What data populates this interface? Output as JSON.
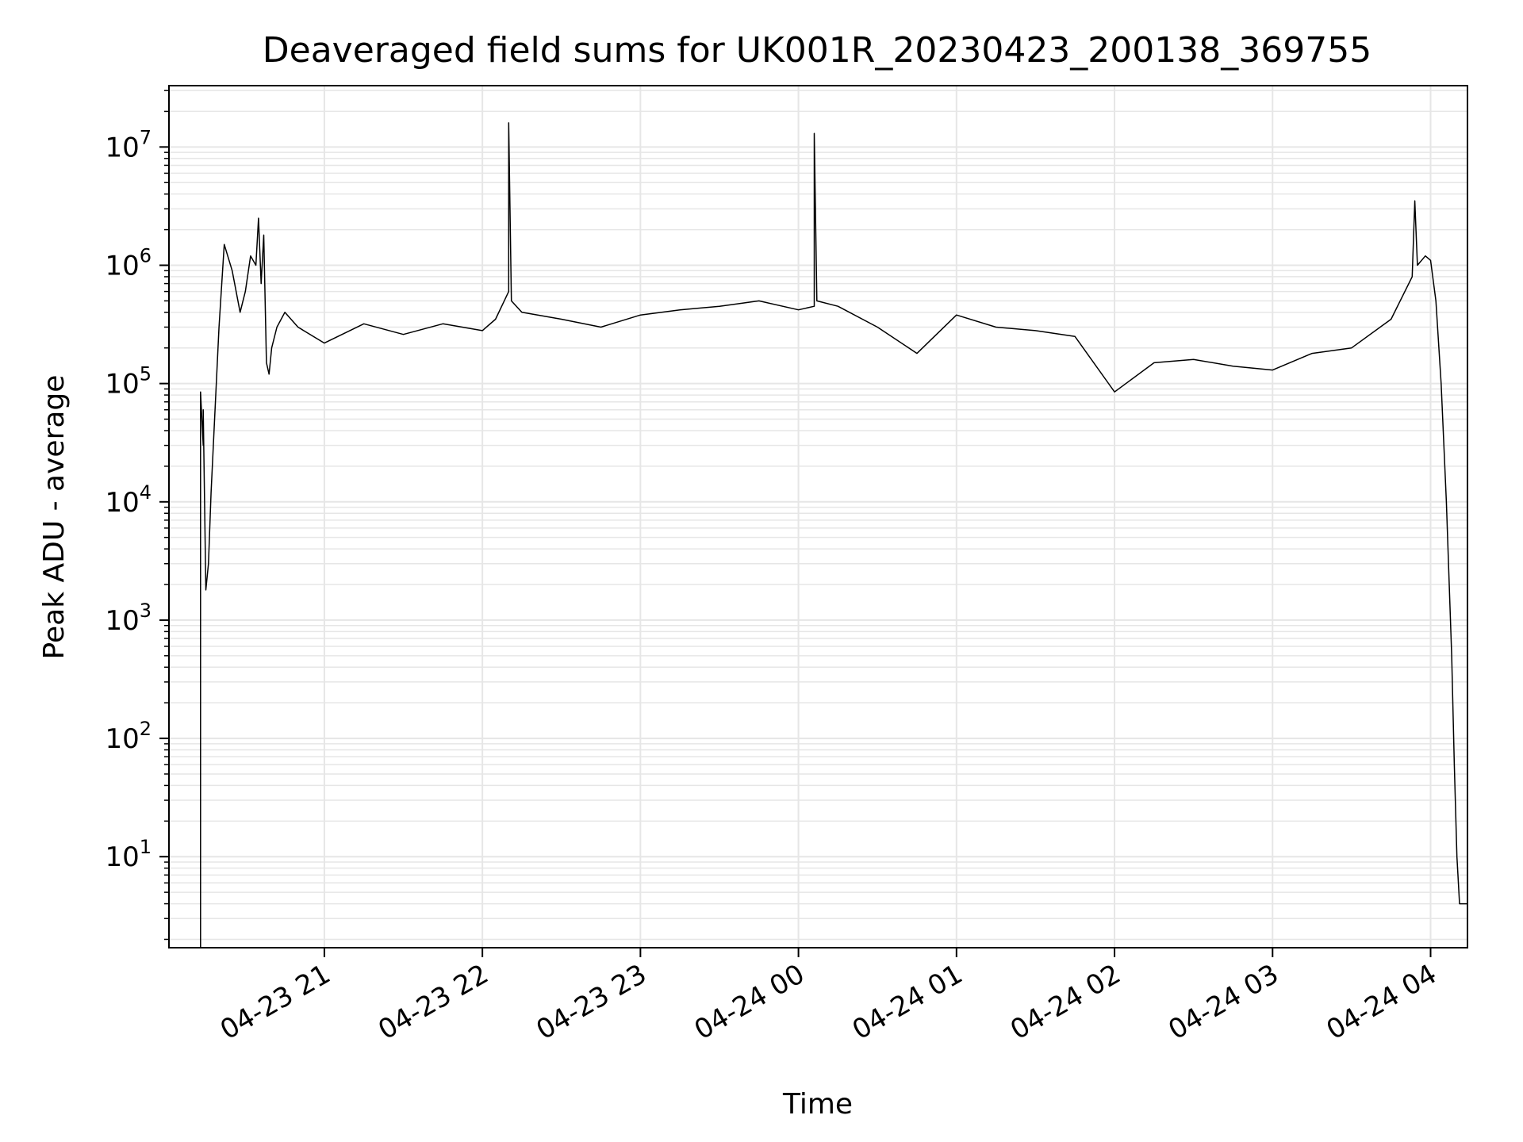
{
  "chart_data": {
    "type": "line",
    "title": "Deaveraged field sums for UK001R_20230423_200138_369755",
    "xlabel": "Time",
    "ylabel": "Peak ADU - average",
    "yscale": "log",
    "grid": true,
    "line_color": "#000000",
    "grid_color": "#e6e6e6",
    "xlim": [
      "2023-04-23 20:01",
      "2023-04-24 04:14"
    ],
    "ylim": [
      1.7,
      33000000.0
    ],
    "x_ticks": [
      {
        "value": "2023-04-23 21:00",
        "label": "04-23 21"
      },
      {
        "value": "2023-04-23 22:00",
        "label": "04-23 22"
      },
      {
        "value": "2023-04-23 23:00",
        "label": "04-23 23"
      },
      {
        "value": "2023-04-24 00:00",
        "label": "04-24 00"
      },
      {
        "value": "2023-04-24 01:00",
        "label": "04-24 01"
      },
      {
        "value": "2023-04-24 02:00",
        "label": "04-24 02"
      },
      {
        "value": "2023-04-24 03:00",
        "label": "04-24 03"
      },
      {
        "value": "2023-04-24 04:00",
        "label": "04-24 04"
      }
    ],
    "y_ticks": [
      {
        "value": 10,
        "base": "10",
        "exp": "1"
      },
      {
        "value": 100,
        "base": "10",
        "exp": "2"
      },
      {
        "value": 1000,
        "base": "10",
        "exp": "3"
      },
      {
        "value": 10000,
        "base": "10",
        "exp": "4"
      },
      {
        "value": 100000,
        "base": "10",
        "exp": "5"
      },
      {
        "value": 1000000,
        "base": "10",
        "exp": "6"
      },
      {
        "value": 10000000,
        "base": "10",
        "exp": "7"
      }
    ],
    "series": [
      {
        "x": [
          "2023-04-23 20:13",
          "2023-04-23 20:13",
          "2023-04-23 20:14",
          "2023-04-23 20:14",
          "2023-04-23 20:15",
          "2023-04-23 20:16",
          "2023-04-23 20:17",
          "2023-04-23 20:20",
          "2023-04-23 20:22",
          "2023-04-23 20:25",
          "2023-04-23 20:28",
          "2023-04-23 20:30",
          "2023-04-23 20:32",
          "2023-04-23 20:34",
          "2023-04-23 20:35",
          "2023-04-23 20:36",
          "2023-04-23 20:37",
          "2023-04-23 20:38",
          "2023-04-23 20:39",
          "2023-04-23 20:40",
          "2023-04-23 20:42",
          "2023-04-23 20:45",
          "2023-04-23 20:50",
          "2023-04-23 21:00",
          "2023-04-23 21:15",
          "2023-04-23 21:30",
          "2023-04-23 21:45",
          "2023-04-23 22:00",
          "2023-04-23 22:05",
          "2023-04-23 22:10",
          "2023-04-23 22:10",
          "2023-04-23 22:11",
          "2023-04-23 22:15",
          "2023-04-23 22:30",
          "2023-04-23 22:45",
          "2023-04-23 23:00",
          "2023-04-23 23:15",
          "2023-04-23 23:30",
          "2023-04-23 23:45",
          "2023-04-24 00:00",
          "2023-04-24 00:06",
          "2023-04-24 00:06",
          "2023-04-24 00:07",
          "2023-04-24 00:15",
          "2023-04-24 00:30",
          "2023-04-24 00:45",
          "2023-04-24 01:00",
          "2023-04-24 01:15",
          "2023-04-24 01:30",
          "2023-04-24 01:45",
          "2023-04-24 02:00",
          "2023-04-24 02:15",
          "2023-04-24 02:30",
          "2023-04-24 02:45",
          "2023-04-24 03:00",
          "2023-04-24 03:15",
          "2023-04-24 03:30",
          "2023-04-24 03:45",
          "2023-04-24 03:53",
          "2023-04-24 03:54",
          "2023-04-24 03:55",
          "2023-04-24 03:58",
          "2023-04-24 04:00",
          "2023-04-24 04:02",
          "2023-04-24 04:04",
          "2023-04-24 04:06",
          "2023-04-24 04:08",
          "2023-04-24 04:09",
          "2023-04-24 04:10",
          "2023-04-24 04:11",
          "2023-04-24 04:11",
          "2023-04-24 04:12",
          "2023-04-24 04:14"
        ],
        "y": [
          1.7,
          85000,
          30000,
          60000,
          1800,
          3000,
          12000,
          300000,
          1500000,
          900000,
          400000,
          600000,
          1200000,
          1000000,
          2500000,
          700000,
          1800000,
          150000,
          120000,
          200000,
          300000,
          400000,
          300000,
          220000,
          320000,
          260000,
          320000,
          280000,
          350000,
          600000,
          16000000,
          500000,
          400000,
          350000,
          300000,
          380000,
          420000,
          450000,
          500000,
          420000,
          450000,
          13000000,
          500000,
          450000,
          300000,
          180000,
          380000,
          300000,
          280000,
          250000,
          85000,
          150000,
          160000,
          140000,
          130000,
          180000,
          200000,
          350000,
          800000,
          3500000,
          1000000,
          1200000,
          1100000,
          500000,
          100000,
          10000,
          500,
          60,
          10,
          4,
          4,
          4,
          4
        ]
      }
    ]
  }
}
